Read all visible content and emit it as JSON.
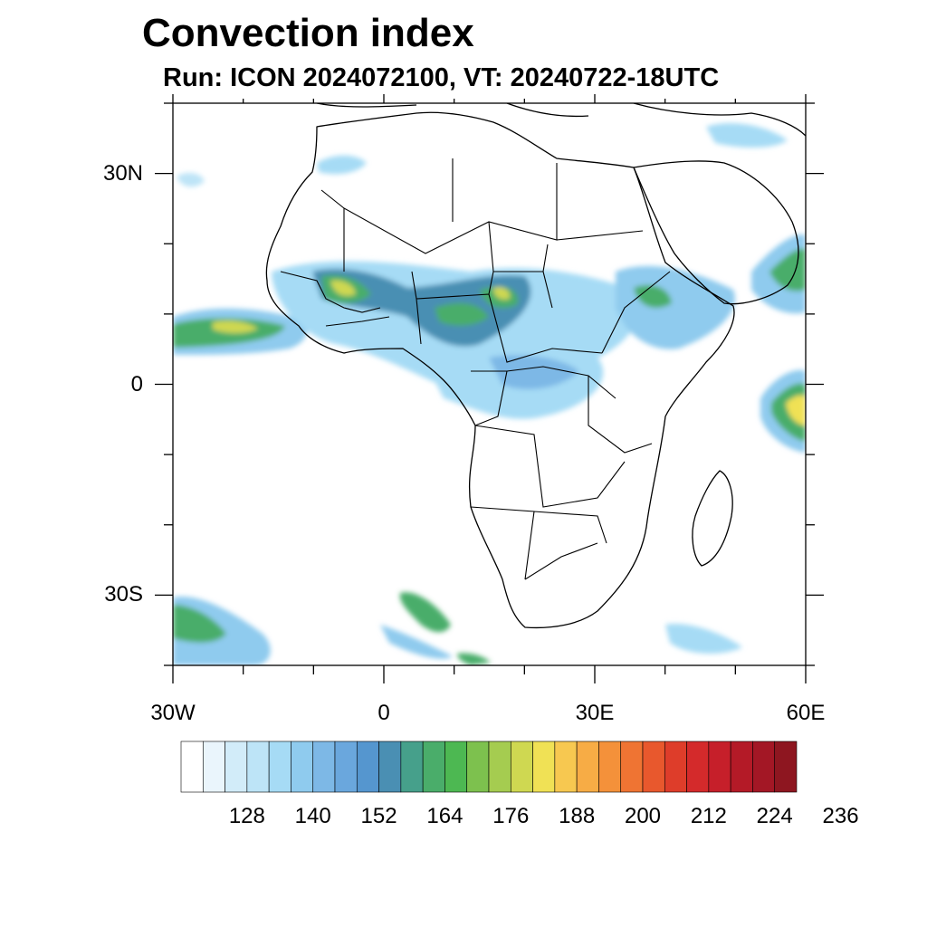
{
  "title": "Convection index",
  "subtitle": "Run: ICON 2024072100,  VT: 20240722-18UTC",
  "map": {
    "lat_labels": [
      "30N",
      "0",
      "30S"
    ],
    "lon_labels": [
      "30W",
      "0",
      "30E",
      "60E"
    ],
    "lat_values": [
      30,
      0,
      -30
    ],
    "lon_values": [
      -30,
      0,
      30,
      60
    ],
    "lat_range": [
      -40,
      40
    ],
    "lon_range": [
      -30,
      60
    ]
  },
  "colorbar": {
    "labels": [
      "128",
      "140",
      "152",
      "164",
      "176",
      "188",
      "200",
      "212",
      "224",
      "236"
    ],
    "colors": [
      "#ffffff",
      "#eaf5fc",
      "#d2ecf9",
      "#bde4f7",
      "#a6dbf5",
      "#8fcbee",
      "#7db8e6",
      "#6aa7dd",
      "#5596cf",
      "#4a8fb3",
      "#46a08b",
      "#4aad6a",
      "#4db852",
      "#7dc14e",
      "#a5cc50",
      "#cfd851",
      "#f0e155",
      "#f7c850",
      "#f7ac45",
      "#f4913a",
      "#ef7433",
      "#e8582d",
      "#de3d2a",
      "#d42a2b",
      "#c61f2a",
      "#b41a27",
      "#a31725",
      "#8e1620"
    ]
  },
  "legend": {
    "colors": {
      "land_outline": "#000000",
      "ocean": "#ffffff"
    }
  }
}
